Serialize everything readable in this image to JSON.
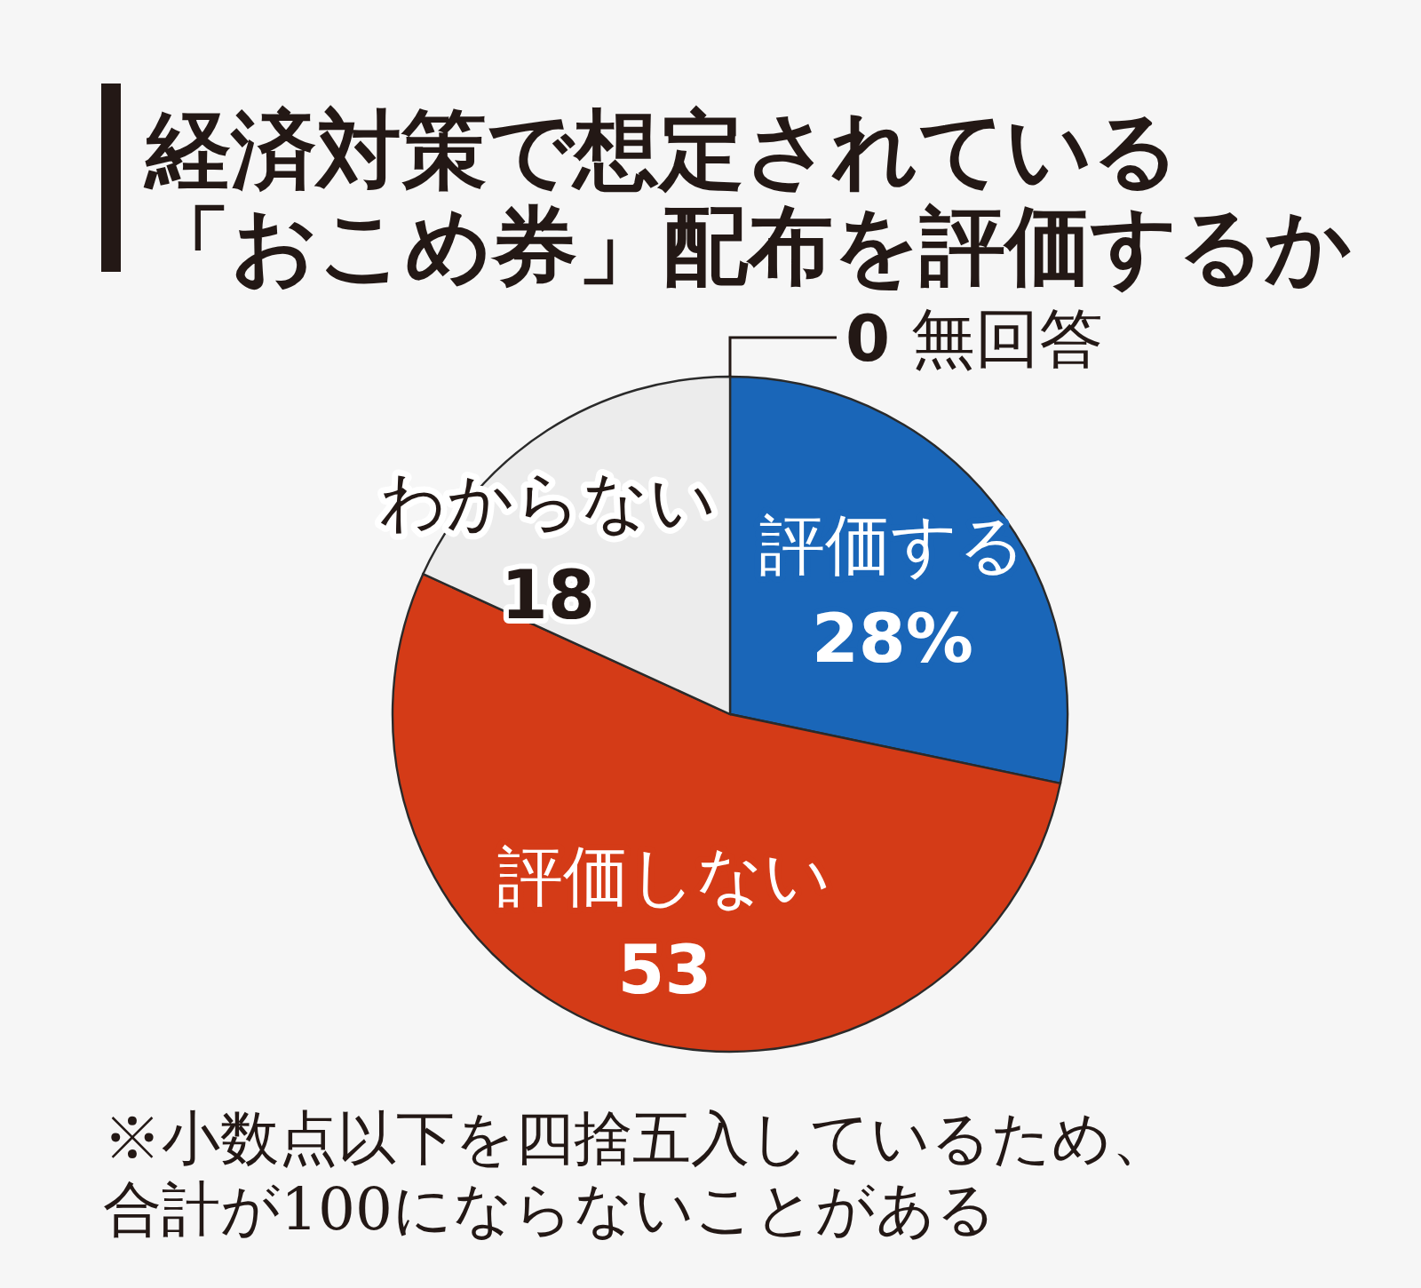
{
  "chart_data": {
    "type": "pie",
    "title": "経済対策で想定されている「おこめ券」配布を評価するか",
    "categories": [
      "評価する",
      "評価しない",
      "わからない",
      "無回答"
    ],
    "values": [
      28,
      53,
      18,
      0
    ],
    "colors": [
      "#1a66b8",
      "#d43b17",
      "#ececec",
      null
    ],
    "value_labels": [
      "28%",
      "53",
      "18",
      "0"
    ],
    "annotations": [
      "※小数点以下を四捨五入しているため、合計が100にならないことがある"
    ]
  }
}
